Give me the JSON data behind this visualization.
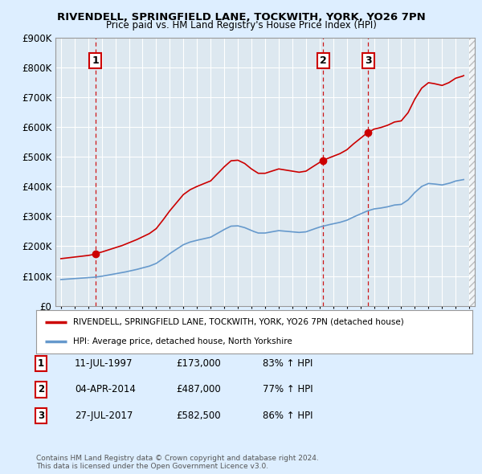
{
  "title1": "RIVENDELL, SPRINGFIELD LANE, TOCKWITH, YORK, YO26 7PN",
  "title2": "Price paid vs. HM Land Registry's House Price Index (HPI)",
  "red_label": "RIVENDELL, SPRINGFIELD LANE, TOCKWITH, YORK, YO26 7PN (detached house)",
  "blue_label": "HPI: Average price, detached house, North Yorkshire",
  "sale_points": [
    {
      "date_num": 1997.53,
      "price": 173000,
      "label": "1"
    },
    {
      "date_num": 2014.25,
      "price": 487000,
      "label": "2"
    },
    {
      "date_num": 2017.57,
      "price": 582500,
      "label": "3"
    }
  ],
  "table_rows": [
    {
      "num": "1",
      "date": "11-JUL-1997",
      "price": "£173,000",
      "hpi": "83% ↑ HPI"
    },
    {
      "num": "2",
      "date": "04-APR-2014",
      "price": "£487,000",
      "hpi": "77% ↑ HPI"
    },
    {
      "num": "3",
      "date": "27-JUL-2017",
      "price": "£582,500",
      "hpi": "86% ↑ HPI"
    }
  ],
  "footer": "Contains HM Land Registry data © Crown copyright and database right 2024.\nThis data is licensed under the Open Government Licence v3.0.",
  "red_color": "#cc0000",
  "blue_color": "#6699cc",
  "dashed_color": "#cc0000",
  "bg_color": "#ddeeff",
  "plot_bg": "#ccd9e8",
  "grid_color": "#b8ccd8",
  "ylim": [
    0,
    900000
  ],
  "xlim_start": 1994.6,
  "xlim_end": 2025.4,
  "yticks": [
    0,
    100000,
    200000,
    300000,
    400000,
    500000,
    600000,
    700000,
    800000,
    900000
  ],
  "ytick_labels": [
    "£0",
    "£100K",
    "£200K",
    "£300K",
    "£400K",
    "£500K",
    "£600K",
    "£700K",
    "£800K",
    "£900K"
  ]
}
